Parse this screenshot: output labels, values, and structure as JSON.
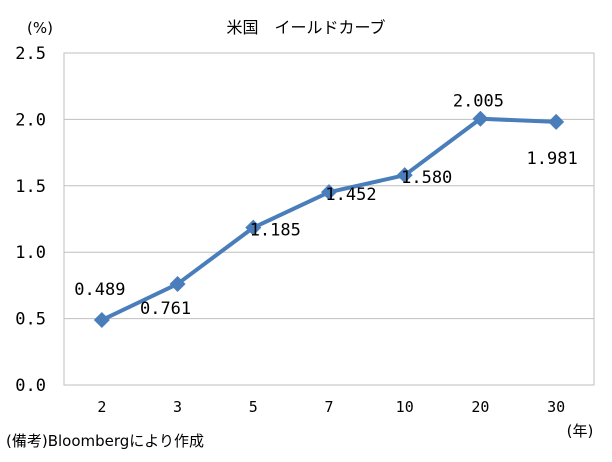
{
  "chart_data": {
    "type": "line",
    "title": "米国　イールドカーブ",
    "ylabel": "(%)",
    "xlabel": "(年)",
    "note": "(備考)Bloombergにより作成",
    "categories": [
      "2",
      "3",
      "5",
      "7",
      "10",
      "20",
      "30"
    ],
    "y_ticks": [
      "0.0",
      "0.5",
      "1.0",
      "1.5",
      "2.0",
      "2.5"
    ],
    "ylim": [
      0,
      2.5
    ],
    "series": [
      {
        "values": [
          0.489,
          0.761,
          1.185,
          1.452,
          1.58,
          2.005,
          1.981
        ],
        "labels": [
          "0.489",
          "0.761",
          "1.185",
          "1.452",
          "1.580",
          "2.005",
          "1.981"
        ],
        "color": "#4a7ebb"
      }
    ],
    "grid": true
  }
}
